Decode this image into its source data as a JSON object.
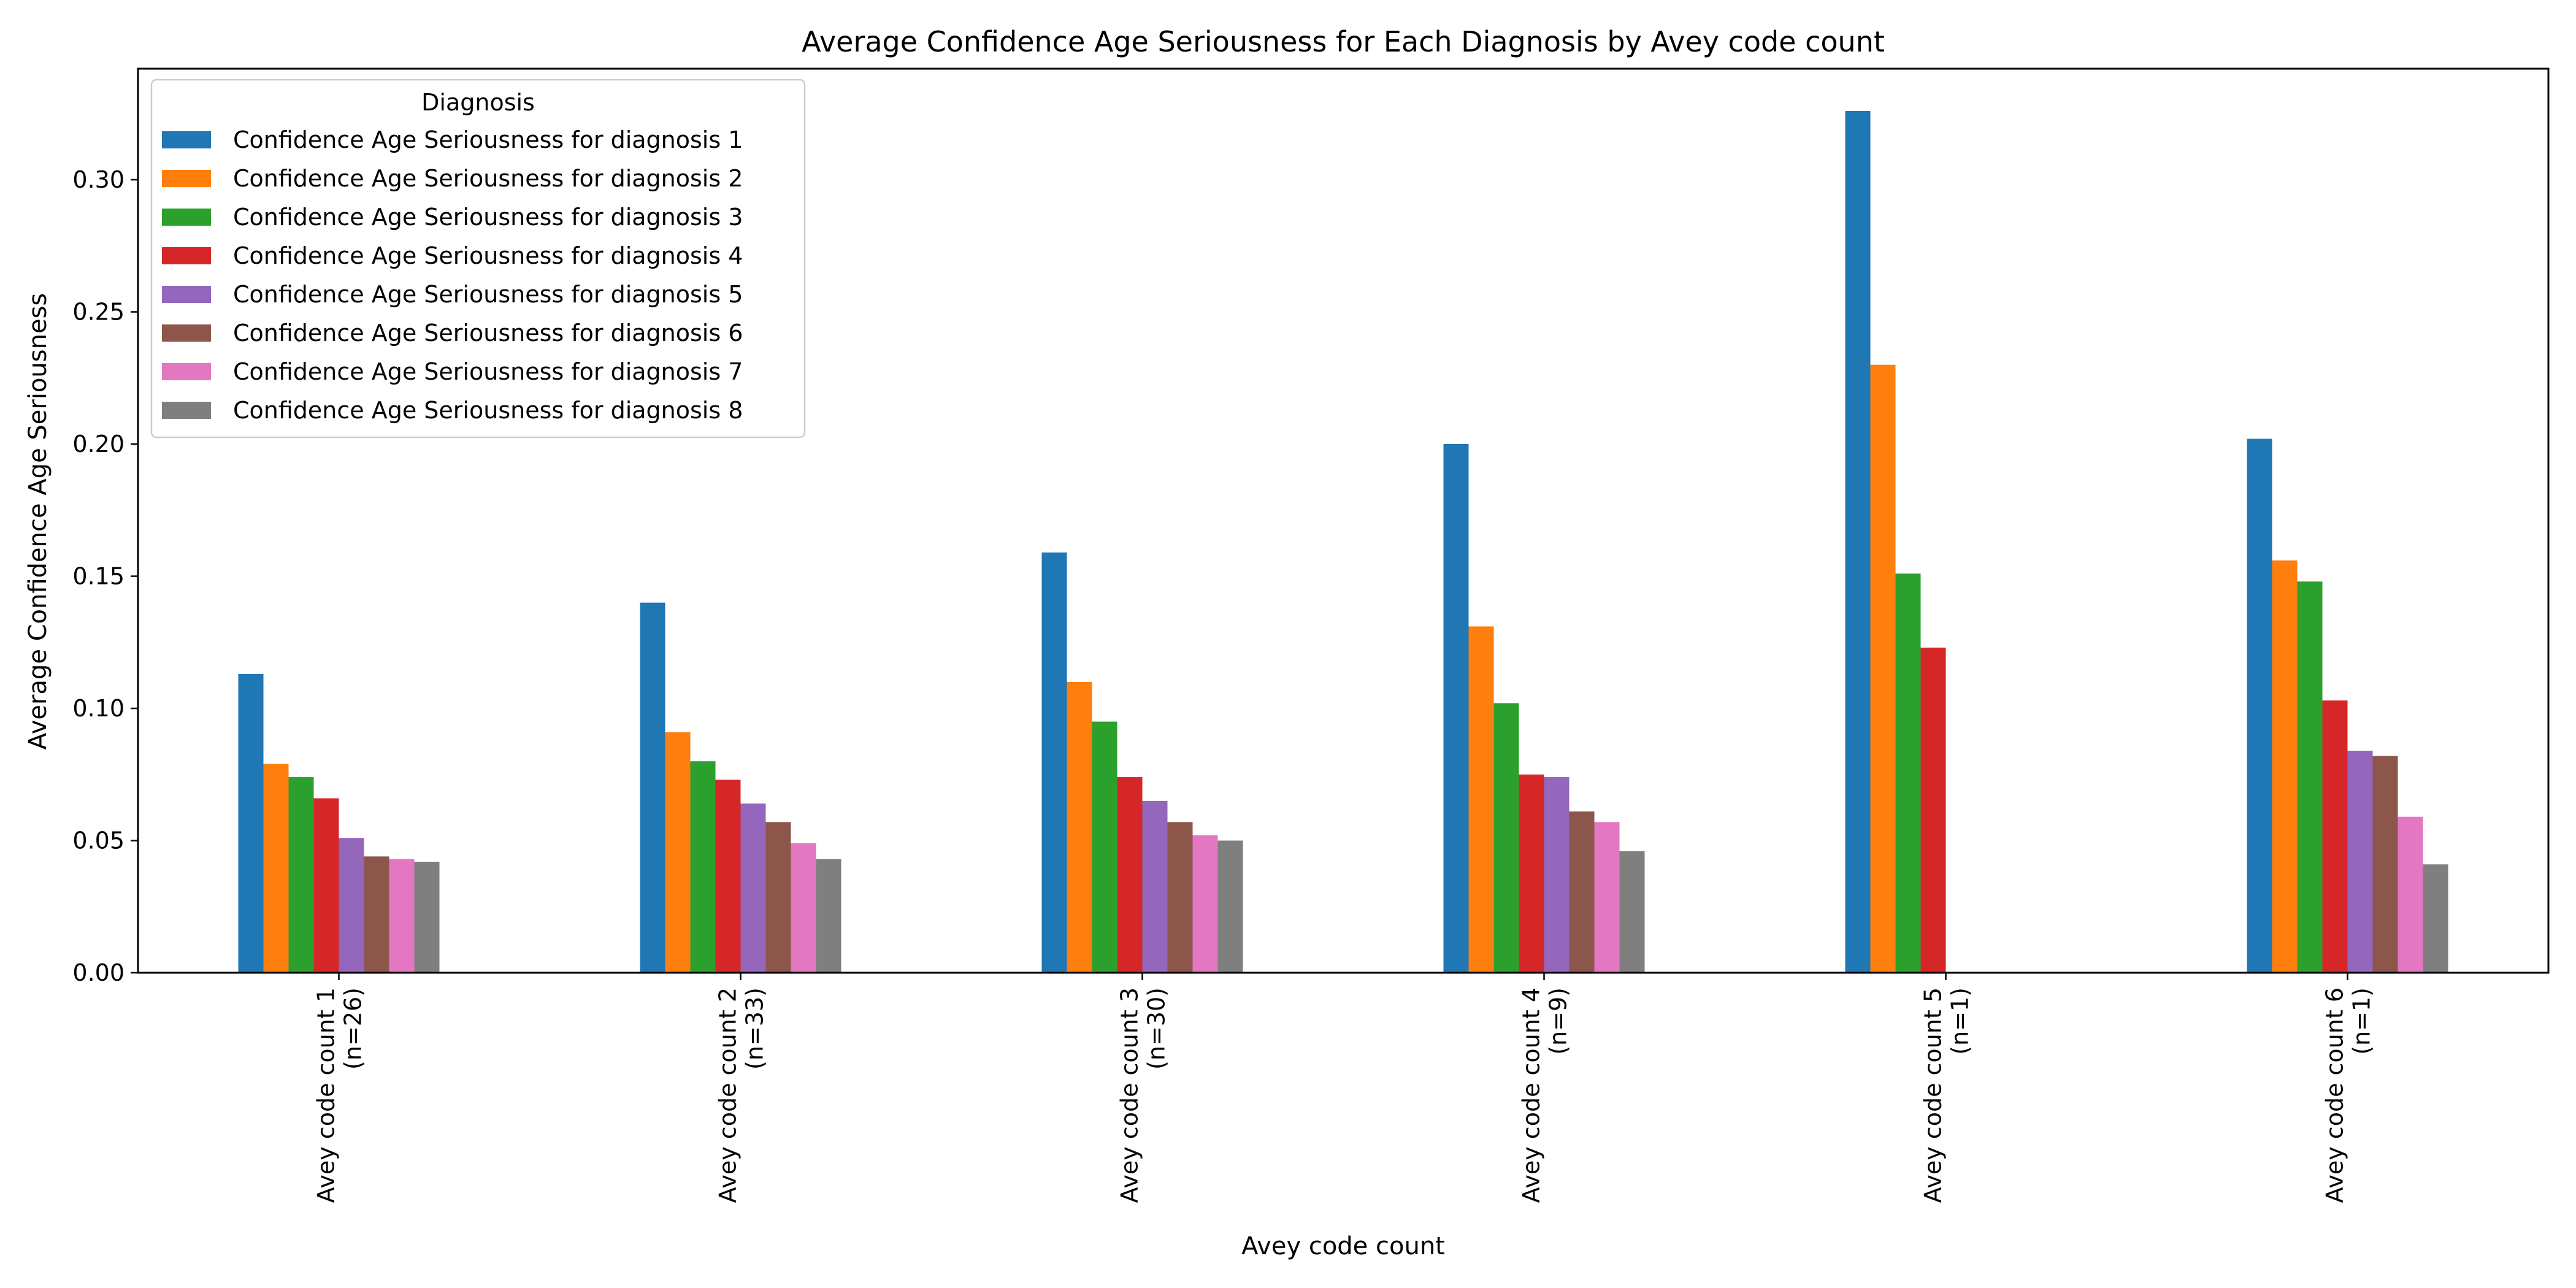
{
  "chart_data": {
    "type": "bar",
    "title": "Average Confidence Age Seriousness for Each Diagnosis by Avey code count",
    "xlabel": "Avey code count",
    "ylabel": "Average Confidence Age Seriousness",
    "categories": [
      [
        "Avey code count 1",
        "(n=26)"
      ],
      [
        "Avey code count 2",
        "(n=33)"
      ],
      [
        "Avey code count 3",
        "(n=30)"
      ],
      [
        "Avey code count 4",
        "(n=9)"
      ],
      [
        "Avey code count 5",
        "(n=1)"
      ],
      [
        "Avey code count 6",
        "(n=1)"
      ]
    ],
    "ylim": [
      0,
      0.342
    ],
    "yticks": [
      0.0,
      0.05,
      0.1,
      0.15,
      0.2,
      0.25,
      0.3
    ],
    "ytick_labels": [
      "0.00",
      "0.05",
      "0.10",
      "0.15",
      "0.20",
      "0.25",
      "0.30"
    ],
    "grid": false,
    "legend": {
      "title": "Diagnosis",
      "placement": "top-left"
    },
    "series": [
      {
        "name": "Confidence Age Seriousness for diagnosis 1",
        "color": "#1f77b4",
        "values": [
          0.113,
          0.14,
          0.159,
          0.2,
          0.326,
          0.202
        ]
      },
      {
        "name": "Confidence Age Seriousness for diagnosis 2",
        "color": "#ff7f0e",
        "values": [
          0.079,
          0.091,
          0.11,
          0.131,
          0.23,
          0.156
        ]
      },
      {
        "name": "Confidence Age Seriousness for diagnosis 3",
        "color": "#2ca02c",
        "values": [
          0.074,
          0.08,
          0.095,
          0.102,
          0.151,
          0.148
        ]
      },
      {
        "name": "Confidence Age Seriousness for diagnosis 4",
        "color": "#d62728",
        "values": [
          0.066,
          0.073,
          0.074,
          0.075,
          0.123,
          0.103
        ]
      },
      {
        "name": "Confidence Age Seriousness for diagnosis 5",
        "color": "#9467bd",
        "values": [
          0.051,
          0.064,
          0.065,
          0.074,
          null,
          0.084
        ]
      },
      {
        "name": "Confidence Age Seriousness for diagnosis 6",
        "color": "#8c564b",
        "values": [
          0.044,
          0.057,
          0.057,
          0.061,
          null,
          0.082
        ]
      },
      {
        "name": "Confidence Age Seriousness for diagnosis 7",
        "color": "#e377c2",
        "values": [
          0.043,
          0.049,
          0.052,
          0.057,
          null,
          0.059
        ]
      },
      {
        "name": "Confidence Age Seriousness for diagnosis 8",
        "color": "#7f7f7f",
        "values": [
          0.042,
          0.043,
          0.05,
          0.046,
          null,
          0.041
        ]
      }
    ]
  }
}
